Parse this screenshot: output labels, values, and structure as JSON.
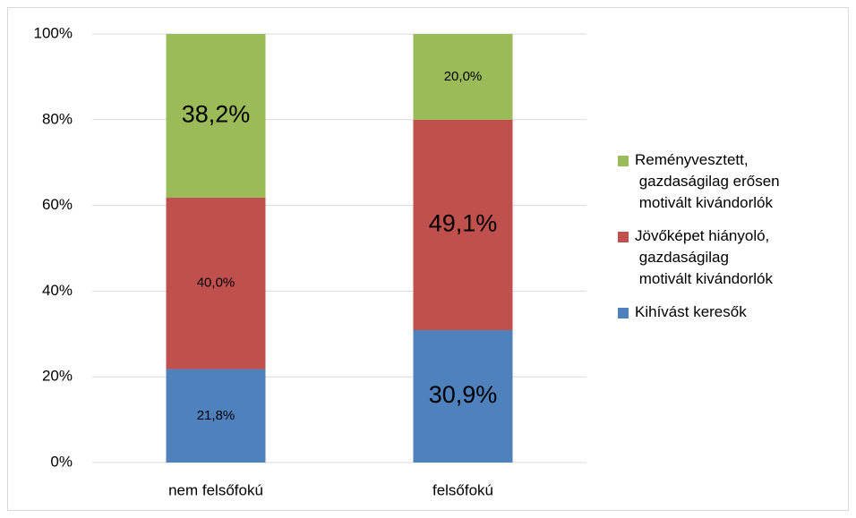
{
  "chart_data": {
    "type": "stacked_bar",
    "categories": [
      "nem felsőfokú",
      "felsőfokú"
    ],
    "series": [
      {
        "name": "Kihívást keresők",
        "color": "#4f81bd",
        "values": [
          21.8,
          30.9
        ],
        "value_labels": [
          "21,8%",
          "30,9%"
        ],
        "emphasis": [
          false,
          true
        ]
      },
      {
        "name": "Jövőképet hiányoló, gazdaságilag motivált kivándorlók",
        "color": "#c0504d",
        "values": [
          40.0,
          49.1
        ],
        "value_labels": [
          "40,0%",
          "49,1%"
        ],
        "emphasis": [
          false,
          true
        ]
      },
      {
        "name": "Reményvesztett, gazdaságilag erősen motivált kivándorlók",
        "color": "#9bbb59",
        "values": [
          38.2,
          20.0
        ],
        "value_labels": [
          "38,2%",
          "20,0%"
        ],
        "emphasis": [
          true,
          false
        ]
      }
    ],
    "ylim": [
      0,
      100
    ],
    "yticks": [
      {
        "value": 0,
        "label": "0%"
      },
      {
        "value": 20,
        "label": "20%"
      },
      {
        "value": 40,
        "label": "40%"
      },
      {
        "value": 60,
        "label": "60%"
      },
      {
        "value": 80,
        "label": "80%"
      },
      {
        "value": 100,
        "label": "100%"
      }
    ],
    "grid": true,
    "legend": "right"
  }
}
